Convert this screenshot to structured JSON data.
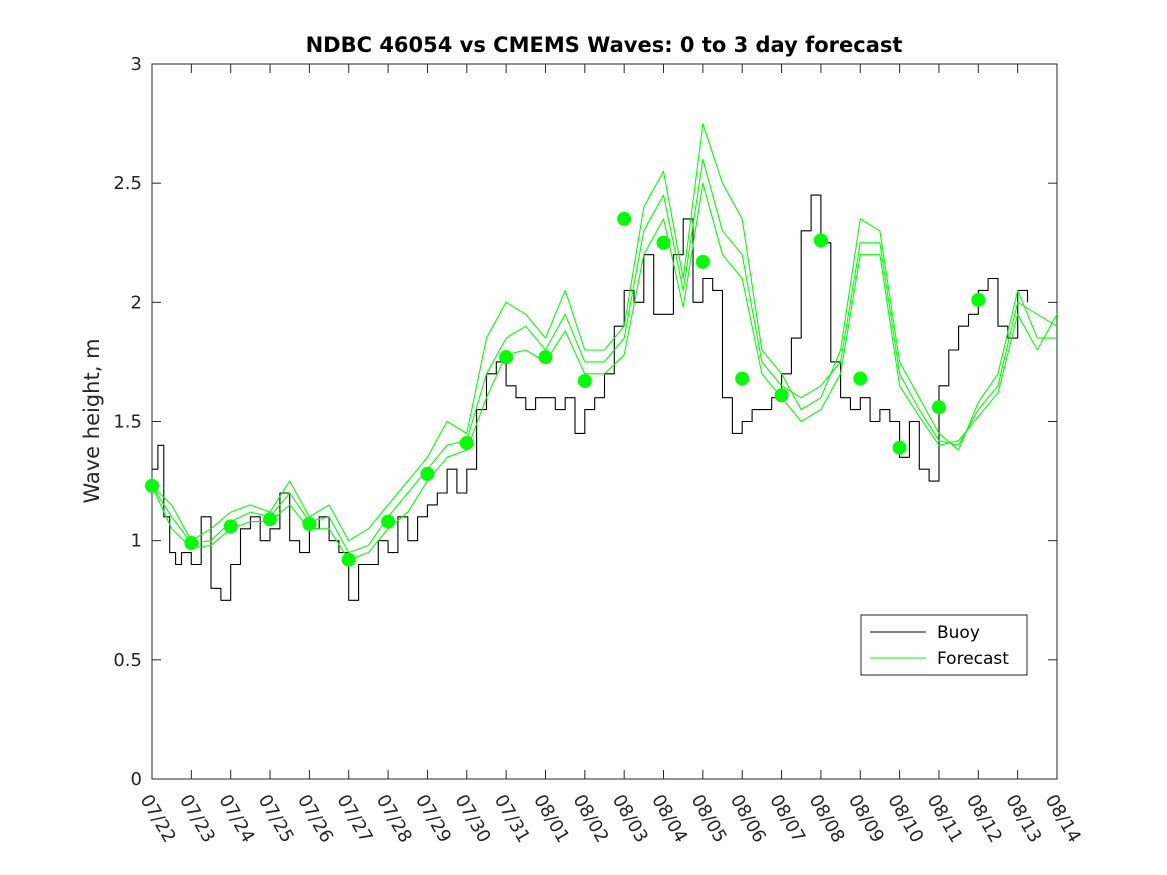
{
  "chart_data": {
    "type": "line",
    "title": "NDBC 46054 vs CMEMS Waves: 0 to 3 day forecast",
    "xlabel": "",
    "ylabel": "Wave height, m",
    "ylim": [
      0,
      3
    ],
    "yticks": [
      "0",
      "0.5",
      "1",
      "1.5",
      "2",
      "2.5",
      "3"
    ],
    "xlim": [
      0,
      23
    ],
    "xticks": [
      "07/22",
      "07/23",
      "07/24",
      "07/25",
      "07/26",
      "07/27",
      "07/28",
      "07/29",
      "07/30",
      "07/31",
      "08/01",
      "08/02",
      "08/03",
      "08/04",
      "08/05",
      "08/06",
      "08/07",
      "08/08",
      "08/09",
      "08/10",
      "08/11",
      "08/12",
      "08/13",
      "08/14"
    ],
    "grid": false,
    "legend": {
      "placement": "bottom-right",
      "entries": [
        "Buoy",
        "Forecast"
      ]
    },
    "colors": {
      "buoy": "#000000",
      "forecast": "#00ff00",
      "axes": "#262626"
    },
    "series": [
      {
        "name": "Buoy",
        "x": [
          0,
          0.15,
          0.3,
          0.45,
          0.6,
          0.75,
          1.0,
          1.25,
          1.5,
          1.75,
          2.0,
          2.25,
          2.5,
          2.75,
          3.0,
          3.25,
          3.5,
          3.75,
          4.0,
          4.25,
          4.5,
          4.75,
          5.0,
          5.25,
          5.5,
          5.75,
          6.0,
          6.25,
          6.5,
          6.75,
          7.0,
          7.25,
          7.5,
          7.75,
          8.0,
          8.25,
          8.5,
          8.75,
          9.0,
          9.25,
          9.5,
          9.75,
          10.0,
          10.25,
          10.5,
          10.75,
          11.0,
          11.25,
          11.5,
          11.75,
          12.0,
          12.25,
          12.5,
          12.75,
          13.0,
          13.25,
          13.5,
          13.75,
          14.0,
          14.25,
          14.5,
          14.75,
          15.0,
          15.25,
          15.5,
          15.75,
          16.0,
          16.25,
          16.5,
          16.75,
          17.0,
          17.25,
          17.5,
          17.75,
          18.0,
          18.25,
          18.5,
          18.75,
          19.0,
          19.25,
          19.5,
          19.75,
          20.0,
          20.25,
          20.5,
          20.75,
          21.0,
          21.25,
          21.5,
          21.75,
          22.0,
          22.25
        ],
        "y": [
          1.3,
          1.4,
          1.1,
          0.95,
          0.9,
          0.95,
          0.9,
          1.1,
          0.8,
          0.75,
          0.9,
          1.05,
          1.1,
          1.0,
          1.05,
          1.2,
          1.0,
          0.95,
          1.05,
          1.1,
          1.0,
          0.95,
          0.75,
          0.9,
          0.9,
          1.0,
          0.95,
          1.1,
          1.0,
          1.1,
          1.15,
          1.2,
          1.3,
          1.2,
          1.3,
          1.55,
          1.7,
          1.75,
          1.65,
          1.6,
          1.55,
          1.6,
          1.6,
          1.55,
          1.6,
          1.45,
          1.55,
          1.6,
          1.7,
          1.9,
          2.05,
          2.0,
          2.2,
          1.95,
          1.95,
          2.2,
          2.35,
          2.0,
          2.1,
          2.05,
          1.6,
          1.45,
          1.5,
          1.55,
          1.55,
          1.6,
          1.7,
          1.85,
          2.3,
          2.45,
          2.25,
          1.75,
          1.6,
          1.55,
          1.6,
          1.5,
          1.55,
          1.5,
          1.35,
          1.5,
          1.3,
          1.25,
          1.65,
          1.8,
          1.9,
          1.95,
          2.05,
          2.1,
          1.9,
          1.85,
          2.05,
          2.0
        ]
      },
      {
        "name": "Forecast",
        "x": [
          0,
          0.5,
          1.0,
          1.5,
          2.0,
          2.5,
          3.0,
          3.5,
          4.0,
          4.5,
          5.0,
          5.5,
          6.0,
          6.5,
          7.0,
          7.5,
          8.0,
          8.5,
          9.0,
          9.5,
          10.0,
          10.5,
          11.0,
          11.5,
          12.0,
          12.5,
          13.0,
          13.5,
          14.0,
          14.5,
          15.0,
          15.5,
          16.0,
          16.5,
          17.0,
          17.5,
          18.0,
          18.5,
          19.0,
          19.5,
          20.0,
          20.5,
          21.0,
          21.5,
          22.0,
          22.5,
          23.0
        ],
        "y": [
          1.23,
          1.1,
          0.99,
          1.0,
          1.08,
          1.12,
          1.1,
          1.2,
          1.08,
          1.1,
          0.95,
          0.98,
          1.1,
          1.2,
          1.3,
          1.4,
          1.42,
          1.7,
          1.85,
          1.9,
          1.8,
          1.95,
          1.75,
          1.75,
          1.85,
          2.3,
          2.45,
          2.05,
          2.6,
          2.3,
          2.2,
          1.75,
          1.65,
          1.6,
          1.65,
          1.75,
          2.25,
          2.25,
          1.7,
          1.55,
          1.42,
          1.4,
          1.55,
          1.65,
          2.0,
          1.95,
          1.9
        ]
      },
      {
        "name": "",
        "x": [
          0,
          0.5,
          1.0,
          1.5,
          2.0,
          2.5,
          3.0,
          3.5,
          4.0,
          4.5,
          5.0,
          5.5,
          6.0,
          6.5,
          7.0,
          7.5,
          8.0,
          8.5,
          9.0,
          9.5,
          10.0,
          10.5,
          11.0,
          11.5,
          12.0,
          12.5,
          13.0,
          13.5,
          14.0,
          14.5,
          15.0,
          15.5,
          16.0,
          16.5,
          17.0,
          17.5,
          18.0,
          18.5,
          19.0,
          19.5,
          20.0,
          20.5,
          21.0,
          21.5,
          22.0,
          22.5,
          23.0
        ],
        "y": [
          1.23,
          1.15,
          1.0,
          1.05,
          1.12,
          1.15,
          1.12,
          1.25,
          1.1,
          1.15,
          1.0,
          1.05,
          1.15,
          1.25,
          1.35,
          1.5,
          1.45,
          1.85,
          2.0,
          1.95,
          1.85,
          2.05,
          1.8,
          1.8,
          1.9,
          2.4,
          2.55,
          2.1,
          2.75,
          2.5,
          2.35,
          1.8,
          1.7,
          1.55,
          1.6,
          1.8,
          2.35,
          2.3,
          1.75,
          1.6,
          1.45,
          1.38,
          1.58,
          1.7,
          2.05,
          1.85,
          1.85
        ]
      },
      {
        "name": "",
        "x": [
          0,
          0.5,
          1.0,
          1.5,
          2.0,
          2.5,
          3.0,
          3.5,
          4.0,
          4.5,
          5.0,
          5.5,
          6.0,
          6.5,
          7.0,
          7.5,
          8.0,
          8.5,
          9.0,
          9.5,
          10.0,
          10.5,
          11.0,
          11.5,
          12.0,
          12.5,
          13.0,
          13.5,
          14.0,
          14.5,
          15.0,
          15.5,
          16.0,
          16.5,
          17.0,
          17.5,
          18.0,
          18.5,
          19.0,
          19.5,
          20.0,
          20.5,
          21.0,
          21.5,
          22.0,
          22.5,
          23.0
        ],
        "y": [
          1.23,
          1.05,
          0.97,
          0.98,
          1.05,
          1.08,
          1.08,
          1.15,
          1.05,
          1.05,
          0.92,
          0.95,
          1.05,
          1.12,
          1.25,
          1.35,
          1.38,
          1.6,
          1.78,
          1.8,
          1.75,
          1.88,
          1.7,
          1.7,
          1.78,
          2.2,
          2.35,
          1.98,
          2.5,
          2.2,
          2.1,
          1.7,
          1.6,
          1.5,
          1.55,
          1.7,
          2.2,
          2.2,
          1.65,
          1.52,
          1.4,
          1.42,
          1.52,
          1.62,
          1.95,
          1.8,
          1.95
        ]
      }
    ],
    "markers": {
      "name": "",
      "x": [
        0,
        1,
        2,
        3,
        4,
        5,
        6,
        7,
        8,
        9,
        10,
        11,
        12,
        13,
        14,
        15,
        16,
        17,
        18,
        19,
        20,
        21
      ],
      "y": [
        1.23,
        0.99,
        1.06,
        1.09,
        1.07,
        0.92,
        1.08,
        1.28,
        1.41,
        1.77,
        1.77,
        1.67,
        2.35,
        2.25,
        2.17,
        1.68,
        1.61,
        2.26,
        1.68,
        1.39,
        1.56,
        2.01
      ]
    }
  }
}
